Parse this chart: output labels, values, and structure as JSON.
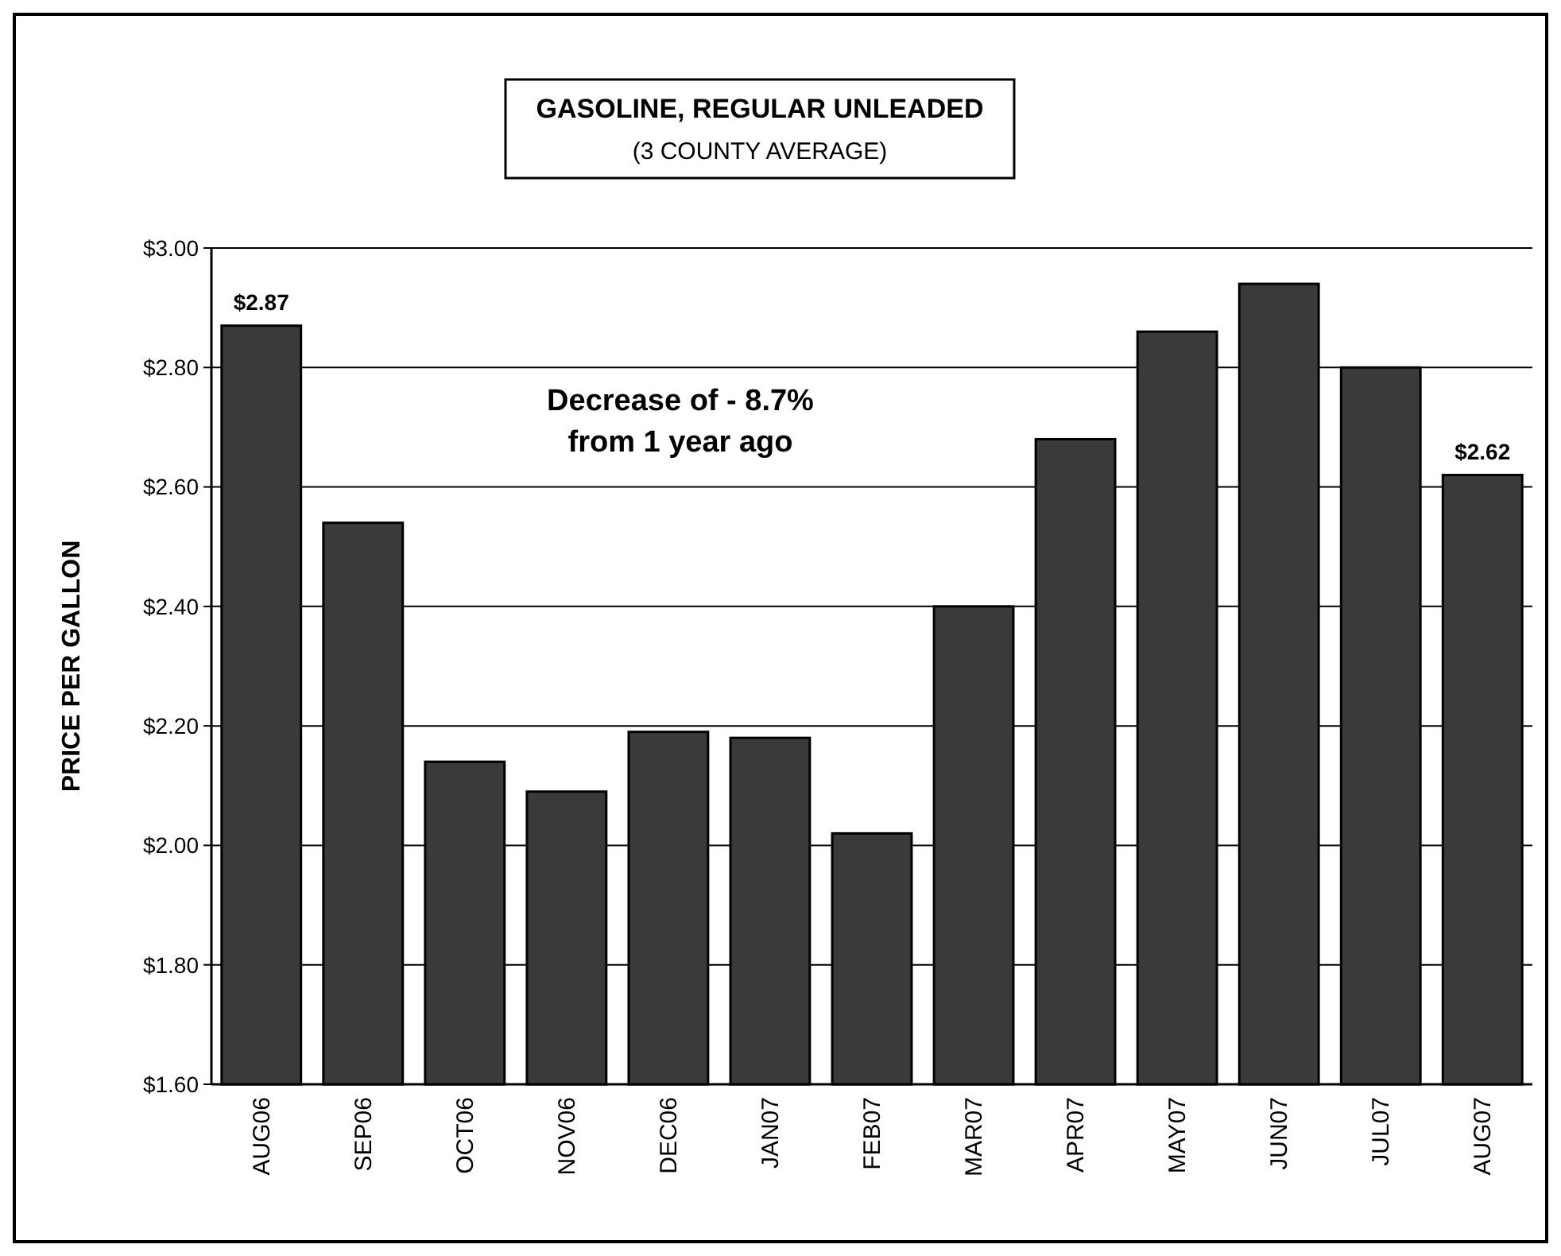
{
  "chart_data": {
    "type": "bar",
    "title": "GASOLINE, REGULAR UNLEADED",
    "subtitle": "(3 COUNTY AVERAGE)",
    "ylabel": "PRICE PER GALLON",
    "categories": [
      "AUG06",
      "SEP06",
      "OCT06",
      "NOV06",
      "DEC06",
      "JAN07",
      "FEB07",
      "MAR07",
      "APR07",
      "MAY07",
      "JUN07",
      "JUL07",
      "AUG07"
    ],
    "values": [
      2.87,
      2.54,
      2.14,
      2.09,
      2.19,
      2.18,
      2.02,
      2.4,
      2.68,
      2.86,
      2.94,
      2.8,
      2.62
    ],
    "value_labels": [
      "$2.87",
      null,
      null,
      null,
      null,
      null,
      null,
      null,
      null,
      null,
      null,
      null,
      "$2.62"
    ],
    "color": "#3a3a3a",
    "ylim": [
      1.6,
      3.0
    ],
    "yticks": [
      {
        "value": 1.6,
        "label": "$1.60"
      },
      {
        "value": 1.8,
        "label": "$1.80"
      },
      {
        "value": 2.0,
        "label": "$2.00"
      },
      {
        "value": 2.2,
        "label": "$2.20"
      },
      {
        "value": 2.4,
        "label": "$2.40"
      },
      {
        "value": 2.6,
        "label": "$2.60"
      },
      {
        "value": 2.8,
        "label": "$2.80"
      },
      {
        "value": 3.0,
        "label": "$3.00"
      }
    ],
    "grid": "y",
    "annotations": [
      "Decrease of - 8.7%\nfrom 1 year ago"
    ]
  }
}
